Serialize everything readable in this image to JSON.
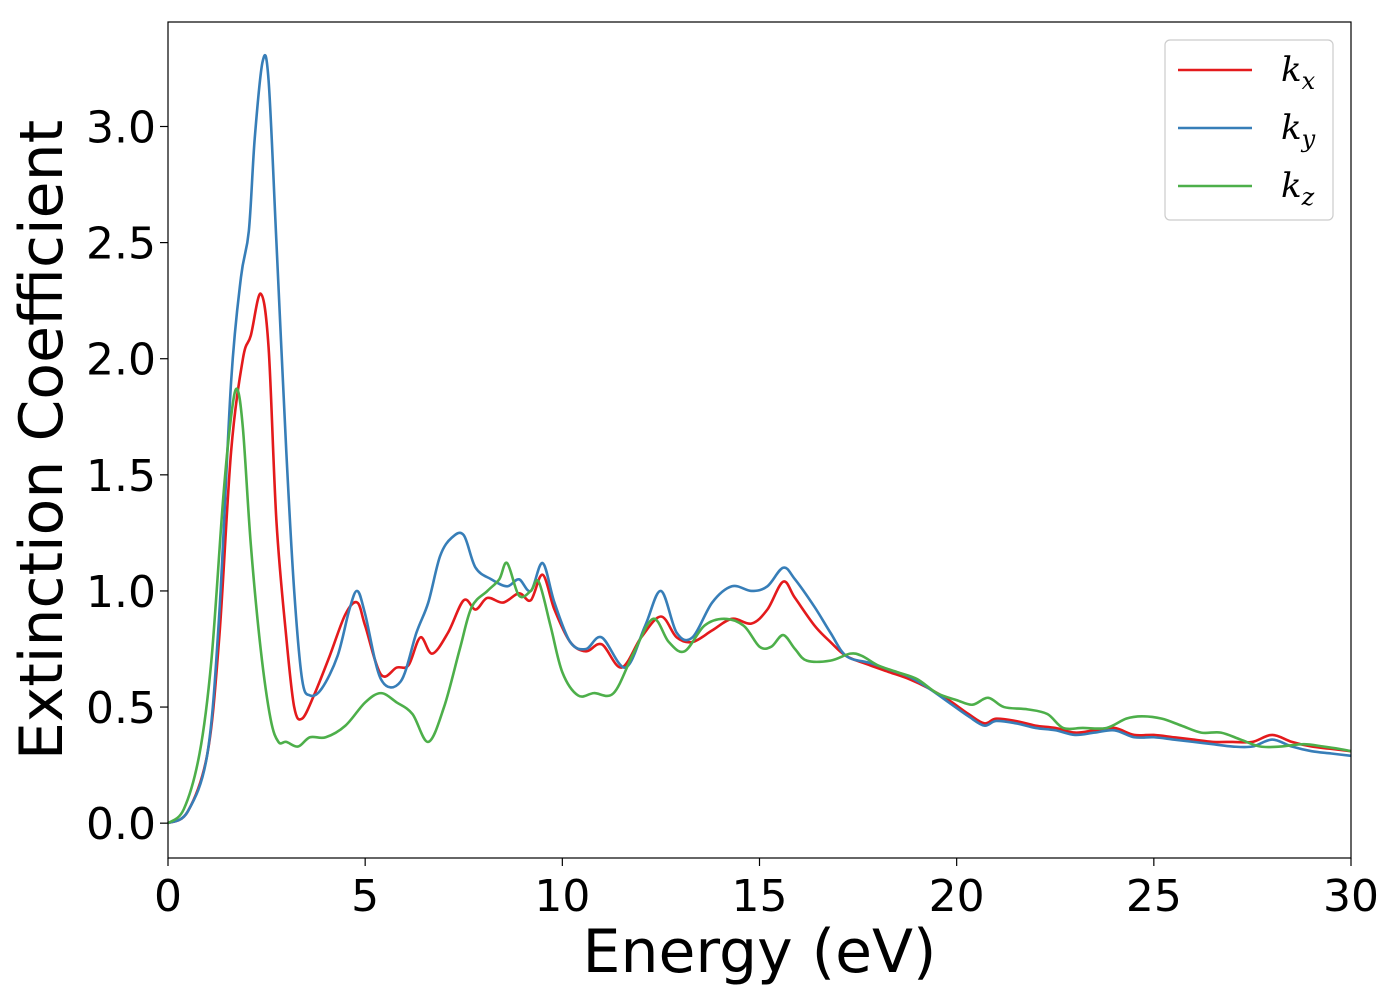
{
  "chart_data": {
    "type": "line",
    "title": "",
    "xlabel": "Energy (eV)",
    "ylabel": "Extinction Coefficient",
    "xlim": [
      0,
      30
    ],
    "ylim": [
      -0.15,
      3.45
    ],
    "xticks": [
      0,
      5,
      10,
      15,
      20,
      25,
      30
    ],
    "xtick_labels": [
      "0",
      "5",
      "10",
      "15",
      "20",
      "25",
      "30"
    ],
    "yticks": [
      0.0,
      0.5,
      1.0,
      1.5,
      2.0,
      2.5,
      3.0
    ],
    "ytick_labels": [
      "0.0",
      "0.5",
      "1.0",
      "1.5",
      "2.0",
      "2.5",
      "3.0"
    ],
    "grid": false,
    "legend_position": "top-right",
    "series": [
      {
        "name": "k_x",
        "label_base": "k",
        "label_sub": "x",
        "color": "#e41a1c",
        "points": [
          [
            0,
            0
          ],
          [
            0.5,
            0.05
          ],
          [
            1.0,
            0.3
          ],
          [
            1.3,
            0.8
          ],
          [
            1.6,
            1.6
          ],
          [
            1.9,
            2.0
          ],
          [
            2.1,
            2.1
          ],
          [
            2.35,
            2.28
          ],
          [
            2.55,
            2.05
          ],
          [
            2.75,
            1.3
          ],
          [
            3.0,
            0.8
          ],
          [
            3.2,
            0.5
          ],
          [
            3.4,
            0.45
          ],
          [
            3.7,
            0.55
          ],
          [
            4.1,
            0.72
          ],
          [
            4.5,
            0.9
          ],
          [
            4.8,
            0.95
          ],
          [
            5.0,
            0.85
          ],
          [
            5.4,
            0.64
          ],
          [
            5.8,
            0.67
          ],
          [
            6.1,
            0.68
          ],
          [
            6.4,
            0.8
          ],
          [
            6.7,
            0.73
          ],
          [
            7.1,
            0.82
          ],
          [
            7.5,
            0.96
          ],
          [
            7.8,
            0.92
          ],
          [
            8.1,
            0.97
          ],
          [
            8.5,
            0.95
          ],
          [
            8.9,
            0.99
          ],
          [
            9.2,
            0.96
          ],
          [
            9.5,
            1.07
          ],
          [
            9.8,
            0.92
          ],
          [
            10.2,
            0.78
          ],
          [
            10.6,
            0.74
          ],
          [
            11.0,
            0.77
          ],
          [
            11.5,
            0.67
          ],
          [
            12.0,
            0.8
          ],
          [
            12.5,
            0.89
          ],
          [
            12.9,
            0.8
          ],
          [
            13.3,
            0.78
          ],
          [
            13.8,
            0.83
          ],
          [
            14.3,
            0.88
          ],
          [
            14.8,
            0.86
          ],
          [
            15.2,
            0.92
          ],
          [
            15.6,
            1.04
          ],
          [
            15.9,
            0.97
          ],
          [
            16.4,
            0.85
          ],
          [
            16.8,
            0.78
          ],
          [
            17.2,
            0.72
          ],
          [
            17.8,
            0.68
          ],
          [
            18.3,
            0.65
          ],
          [
            18.8,
            0.62
          ],
          [
            19.3,
            0.58
          ],
          [
            19.8,
            0.53
          ],
          [
            20.3,
            0.47
          ],
          [
            20.7,
            0.43
          ],
          [
            21.0,
            0.45
          ],
          [
            21.5,
            0.44
          ],
          [
            22.0,
            0.42
          ],
          [
            22.5,
            0.41
          ],
          [
            23.0,
            0.39
          ],
          [
            23.5,
            0.4
          ],
          [
            24.0,
            0.41
          ],
          [
            24.5,
            0.38
          ],
          [
            25.0,
            0.38
          ],
          [
            25.5,
            0.37
          ],
          [
            26.0,
            0.36
          ],
          [
            26.5,
            0.35
          ],
          [
            27.0,
            0.35
          ],
          [
            27.5,
            0.35
          ],
          [
            28.0,
            0.38
          ],
          [
            28.5,
            0.35
          ],
          [
            29.0,
            0.33
          ],
          [
            29.5,
            0.32
          ],
          [
            30.0,
            0.31
          ]
        ]
      },
      {
        "name": "k_y",
        "label_base": "k",
        "label_sub": "y",
        "color": "#377eb8",
        "points": [
          [
            0,
            0
          ],
          [
            0.5,
            0.05
          ],
          [
            1.0,
            0.3
          ],
          [
            1.3,
            0.9
          ],
          [
            1.6,
            1.9
          ],
          [
            1.85,
            2.35
          ],
          [
            2.05,
            2.55
          ],
          [
            2.2,
            2.95
          ],
          [
            2.4,
            3.28
          ],
          [
            2.55,
            3.2
          ],
          [
            2.75,
            2.5
          ],
          [
            3.0,
            1.6
          ],
          [
            3.2,
            1.0
          ],
          [
            3.4,
            0.62
          ],
          [
            3.6,
            0.55
          ],
          [
            3.9,
            0.58
          ],
          [
            4.3,
            0.72
          ],
          [
            4.6,
            0.92
          ],
          [
            4.8,
            1.0
          ],
          [
            5.0,
            0.9
          ],
          [
            5.4,
            0.62
          ],
          [
            5.9,
            0.61
          ],
          [
            6.3,
            0.82
          ],
          [
            6.6,
            0.95
          ],
          [
            6.9,
            1.15
          ],
          [
            7.2,
            1.23
          ],
          [
            7.5,
            1.24
          ],
          [
            7.8,
            1.1
          ],
          [
            8.2,
            1.05
          ],
          [
            8.6,
            1.02
          ],
          [
            8.9,
            1.05
          ],
          [
            9.2,
            1.0
          ],
          [
            9.5,
            1.12
          ],
          [
            9.8,
            0.95
          ],
          [
            10.2,
            0.78
          ],
          [
            10.6,
            0.75
          ],
          [
            11.0,
            0.8
          ],
          [
            11.6,
            0.67
          ],
          [
            12.1,
            0.85
          ],
          [
            12.5,
            1.0
          ],
          [
            12.9,
            0.82
          ],
          [
            13.3,
            0.8
          ],
          [
            13.8,
            0.95
          ],
          [
            14.3,
            1.02
          ],
          [
            14.8,
            1.0
          ],
          [
            15.2,
            1.02
          ],
          [
            15.6,
            1.1
          ],
          [
            15.9,
            1.05
          ],
          [
            16.4,
            0.93
          ],
          [
            16.8,
            0.82
          ],
          [
            17.2,
            0.72
          ],
          [
            17.8,
            0.69
          ],
          [
            18.3,
            0.66
          ],
          [
            18.8,
            0.63
          ],
          [
            19.3,
            0.58
          ],
          [
            19.8,
            0.52
          ],
          [
            20.3,
            0.46
          ],
          [
            20.7,
            0.42
          ],
          [
            21.0,
            0.44
          ],
          [
            21.5,
            0.43
          ],
          [
            22.0,
            0.41
          ],
          [
            22.5,
            0.4
          ],
          [
            23.0,
            0.38
          ],
          [
            23.5,
            0.39
          ],
          [
            24.0,
            0.4
          ],
          [
            24.5,
            0.37
          ],
          [
            25.0,
            0.37
          ],
          [
            25.5,
            0.36
          ],
          [
            26.0,
            0.35
          ],
          [
            26.5,
            0.34
          ],
          [
            27.0,
            0.33
          ],
          [
            27.5,
            0.33
          ],
          [
            28.0,
            0.36
          ],
          [
            28.5,
            0.33
          ],
          [
            29.0,
            0.31
          ],
          [
            29.5,
            0.3
          ],
          [
            30.0,
            0.29
          ]
        ]
      },
      {
        "name": "k_z",
        "label_base": "k",
        "label_sub": "z",
        "color": "#4daf4a",
        "points": [
          [
            0,
            0
          ],
          [
            0.4,
            0.06
          ],
          [
            0.8,
            0.3
          ],
          [
            1.1,
            0.7
          ],
          [
            1.4,
            1.4
          ],
          [
            1.6,
            1.75
          ],
          [
            1.75,
            1.87
          ],
          [
            1.9,
            1.7
          ],
          [
            2.1,
            1.2
          ],
          [
            2.35,
            0.75
          ],
          [
            2.6,
            0.45
          ],
          [
            2.8,
            0.35
          ],
          [
            3.0,
            0.35
          ],
          [
            3.3,
            0.33
          ],
          [
            3.6,
            0.37
          ],
          [
            4.0,
            0.37
          ],
          [
            4.5,
            0.42
          ],
          [
            5.0,
            0.52
          ],
          [
            5.4,
            0.56
          ],
          [
            5.8,
            0.52
          ],
          [
            6.2,
            0.47
          ],
          [
            6.6,
            0.35
          ],
          [
            7.0,
            0.5
          ],
          [
            7.4,
            0.75
          ],
          [
            7.7,
            0.93
          ],
          [
            8.1,
            1.0
          ],
          [
            8.4,
            1.05
          ],
          [
            8.6,
            1.12
          ],
          [
            8.9,
            0.98
          ],
          [
            9.2,
            1.0
          ],
          [
            9.4,
            1.04
          ],
          [
            9.7,
            0.85
          ],
          [
            10.0,
            0.65
          ],
          [
            10.4,
            0.55
          ],
          [
            10.8,
            0.56
          ],
          [
            11.3,
            0.56
          ],
          [
            11.8,
            0.73
          ],
          [
            12.3,
            0.88
          ],
          [
            12.7,
            0.78
          ],
          [
            13.1,
            0.74
          ],
          [
            13.6,
            0.85
          ],
          [
            14.1,
            0.88
          ],
          [
            14.6,
            0.85
          ],
          [
            15.0,
            0.76
          ],
          [
            15.3,
            0.76
          ],
          [
            15.6,
            0.81
          ],
          [
            15.9,
            0.75
          ],
          [
            16.2,
            0.7
          ],
          [
            16.8,
            0.7
          ],
          [
            17.3,
            0.73
          ],
          [
            17.6,
            0.72
          ],
          [
            18.0,
            0.68
          ],
          [
            18.5,
            0.65
          ],
          [
            19.0,
            0.62
          ],
          [
            19.5,
            0.56
          ],
          [
            20.0,
            0.53
          ],
          [
            20.4,
            0.51
          ],
          [
            20.8,
            0.54
          ],
          [
            21.2,
            0.5
          ],
          [
            21.8,
            0.49
          ],
          [
            22.3,
            0.47
          ],
          [
            22.7,
            0.41
          ],
          [
            23.2,
            0.41
          ],
          [
            23.8,
            0.41
          ],
          [
            24.3,
            0.45
          ],
          [
            24.7,
            0.46
          ],
          [
            25.2,
            0.45
          ],
          [
            25.7,
            0.42
          ],
          [
            26.2,
            0.39
          ],
          [
            26.7,
            0.39
          ],
          [
            27.2,
            0.36
          ],
          [
            27.7,
            0.33
          ],
          [
            28.2,
            0.33
          ],
          [
            28.8,
            0.34
          ],
          [
            29.3,
            0.33
          ],
          [
            29.7,
            0.32
          ],
          [
            30.0,
            0.31
          ]
        ]
      }
    ]
  }
}
